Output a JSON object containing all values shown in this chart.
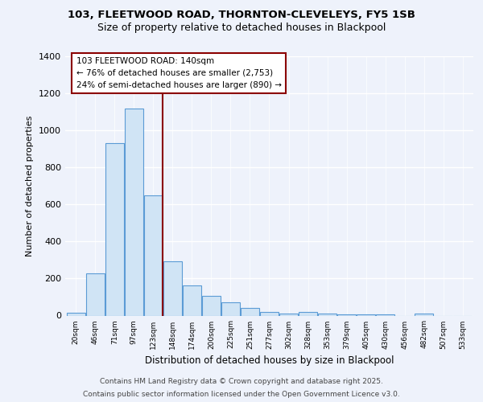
{
  "title_line1": "103, FLEETWOOD ROAD, THORNTON-CLEVELEYS, FY5 1SB",
  "title_line2": "Size of property relative to detached houses in Blackpool",
  "xlabel": "Distribution of detached houses by size in Blackpool",
  "ylabel": "Number of detached properties",
  "categories": [
    "20sqm",
    "46sqm",
    "71sqm",
    "97sqm",
    "123sqm",
    "148sqm",
    "174sqm",
    "200sqm",
    "225sqm",
    "251sqm",
    "277sqm",
    "302sqm",
    "328sqm",
    "353sqm",
    "379sqm",
    "405sqm",
    "430sqm",
    "456sqm",
    "482sqm",
    "507sqm",
    "533sqm"
  ],
  "values": [
    15,
    228,
    930,
    1120,
    650,
    295,
    162,
    107,
    70,
    42,
    20,
    10,
    20,
    10,
    5,
    5,
    5,
    0,
    10,
    0,
    0
  ],
  "bar_color": "#d0e4f5",
  "bar_edge_color": "#5b9bd5",
  "vline_color": "#8b0000",
  "vline_index": 4.5,
  "annotation_text": "103 FLEETWOOD ROAD: 140sqm\n← 76% of detached houses are smaller (2,753)\n24% of semi-detached houses are larger (890) →",
  "annotation_box_facecolor": "#ffffff",
  "annotation_box_edgecolor": "#8b0000",
  "ylim_max": 1400,
  "yticks": [
    0,
    200,
    400,
    600,
    800,
    1000,
    1200,
    1400
  ],
  "bg_color": "#eef2fb",
  "grid_color": "#ffffff",
  "footer_line1": "Contains HM Land Registry data © Crown copyright and database right 2025.",
  "footer_line2": "Contains public sector information licensed under the Open Government Licence v3.0."
}
